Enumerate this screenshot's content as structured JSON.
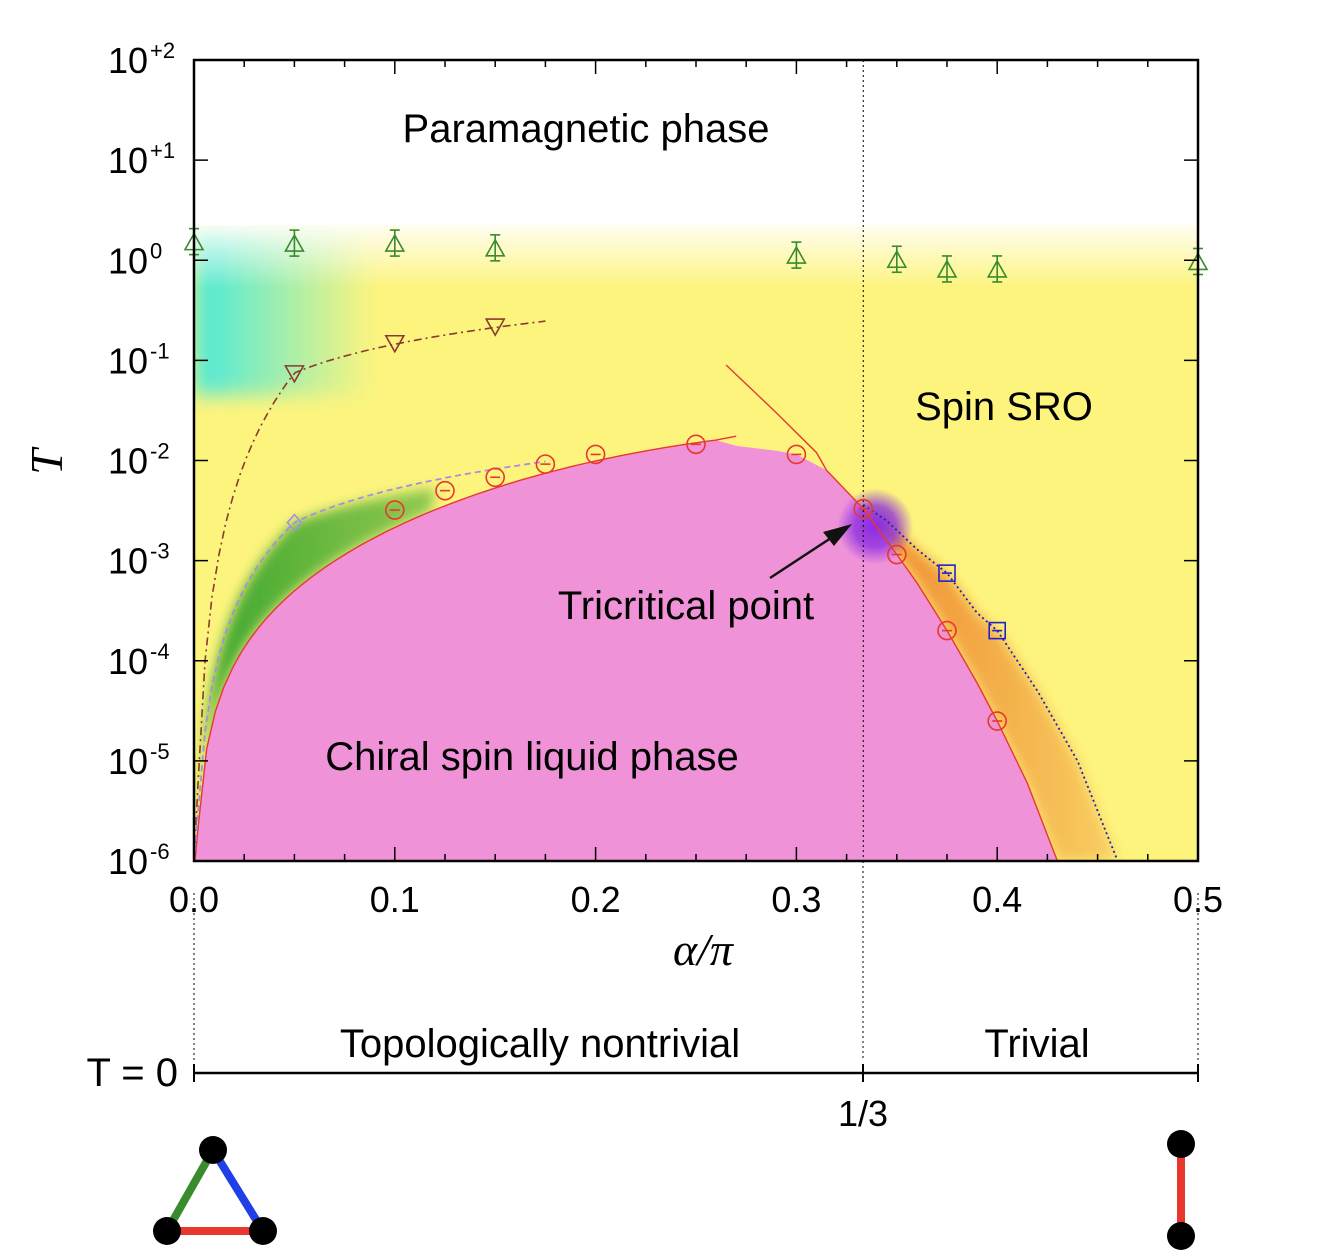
{
  "chart_data": {
    "type": "scatter",
    "x_axis": {
      "label": "α/π",
      "range": [
        0,
        0.5
      ],
      "ticks": [
        "0.0",
        "0.1",
        "0.2",
        "0.3",
        "0.4",
        "0.5"
      ],
      "tick_values": [
        0,
        0.1,
        0.2,
        0.3,
        0.4,
        0.5
      ]
    },
    "y_axis": {
      "label": "T",
      "scale": "log",
      "range_exponents": [
        -6,
        2
      ],
      "tick_bases": [
        "10",
        "10",
        "10",
        "10",
        "10",
        "10",
        "10",
        "10",
        "10"
      ],
      "tick_exponents": [
        "+2",
        "+1",
        "0",
        "-1",
        "-2",
        "-3",
        "-4",
        "-5",
        "-6"
      ]
    },
    "region_labels": {
      "paramagnetic": "Paramagnetic phase",
      "spin_sro": "Spin SRO",
      "csl": "Chiral spin liquid phase",
      "tricritical": "Tricritical point"
    },
    "series": [
      {
        "marker": "triangle-up",
        "color": "#3a8a2e",
        "points": [
          [
            0.0,
            1.5
          ],
          [
            0.05,
            1.45
          ],
          [
            0.1,
            1.45
          ],
          [
            0.15,
            1.3
          ],
          [
            0.3,
            1.1
          ],
          [
            0.35,
            1.0
          ],
          [
            0.375,
            0.8
          ],
          [
            0.4,
            0.8
          ],
          [
            0.5,
            0.95
          ]
        ]
      },
      {
        "marker": "triangle-down",
        "color": "#8b3a2e",
        "points": [
          [
            0.05,
            0.075
          ],
          [
            0.1,
            0.15
          ],
          [
            0.15,
            0.22
          ]
        ]
      },
      {
        "marker": "circle",
        "color": "#e8382e",
        "points": [
          [
            0.1,
            0.0032
          ],
          [
            0.125,
            0.005
          ],
          [
            0.15,
            0.0068
          ],
          [
            0.175,
            0.0092
          ],
          [
            0.2,
            0.0115
          ],
          [
            0.25,
            0.0145
          ],
          [
            0.3,
            0.0115
          ],
          [
            0.3333,
            0.0033
          ],
          [
            0.35,
            0.00115
          ],
          [
            0.375,
            0.0002
          ],
          [
            0.4,
            2.5e-05
          ]
        ]
      },
      {
        "marker": "diamond",
        "color": "#a98de0",
        "points": [
          [
            0.05,
            0.0024
          ]
        ]
      },
      {
        "marker": "square",
        "color": "#2222cc",
        "points": [
          [
            0.375,
            0.00075
          ],
          [
            0.4,
            0.0002
          ]
        ]
      }
    ],
    "tricritical_point": [
      0.3333,
      0.0022
    ],
    "vertical_line_x": 0.3333,
    "bottom_axis": {
      "label": "T = 0",
      "tick_label": "1/3",
      "left_region": "Topologically nontrivial",
      "right_region": "Trivial"
    },
    "colors": {
      "csl": "#f092d8",
      "sro": "#fdf47e",
      "cyan": "#40e8e0",
      "green": "#3aa52c",
      "orange": "#ef8a2e",
      "tricritical": "#8a2be2"
    }
  }
}
